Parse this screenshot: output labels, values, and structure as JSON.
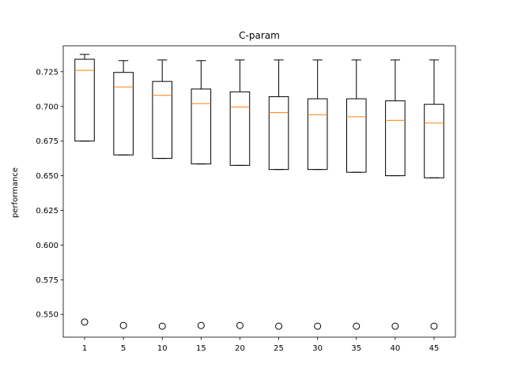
{
  "chart_data": {
    "type": "boxplot",
    "title": "C-param",
    "xlabel": "",
    "ylabel": "performance",
    "categories": [
      "1",
      "5",
      "10",
      "15",
      "20",
      "25",
      "30",
      "35",
      "40",
      "45"
    ],
    "ylim": [
      0.5336,
      0.7437
    ],
    "yticks": [
      0.55,
      0.575,
      0.6,
      0.625,
      0.65,
      0.675,
      0.7,
      0.725
    ],
    "ytick_labels": [
      "0.550",
      "0.575",
      "0.600",
      "0.625",
      "0.650",
      "0.675",
      "0.700",
      "0.725"
    ],
    "grid": false,
    "boxes": [
      {
        "whisker_low": 0.675,
        "q1": 0.675,
        "median": 0.726,
        "q3": 0.734,
        "whisker_high": 0.7375,
        "outliers": [
          0.5445
        ]
      },
      {
        "whisker_low": 0.665,
        "q1": 0.665,
        "median": 0.714,
        "q3": 0.7245,
        "whisker_high": 0.733,
        "outliers": [
          0.542
        ]
      },
      {
        "whisker_low": 0.6625,
        "q1": 0.6625,
        "median": 0.708,
        "q3": 0.718,
        "whisker_high": 0.7335,
        "outliers": [
          0.5415
        ]
      },
      {
        "whisker_low": 0.6585,
        "q1": 0.6585,
        "median": 0.702,
        "q3": 0.7125,
        "whisker_high": 0.733,
        "outliers": [
          0.542
        ]
      },
      {
        "whisker_low": 0.6575,
        "q1": 0.6575,
        "median": 0.6995,
        "q3": 0.7105,
        "whisker_high": 0.7335,
        "outliers": [
          0.542
        ]
      },
      {
        "whisker_low": 0.6545,
        "q1": 0.6545,
        "median": 0.6955,
        "q3": 0.707,
        "whisker_high": 0.7335,
        "outliers": [
          0.5415
        ]
      },
      {
        "whisker_low": 0.6545,
        "q1": 0.6545,
        "median": 0.694,
        "q3": 0.7055,
        "whisker_high": 0.7335,
        "outliers": [
          0.5415
        ]
      },
      {
        "whisker_low": 0.6525,
        "q1": 0.6525,
        "median": 0.6925,
        "q3": 0.7055,
        "whisker_high": 0.7335,
        "outliers": [
          0.5415
        ]
      },
      {
        "whisker_low": 0.65,
        "q1": 0.65,
        "median": 0.69,
        "q3": 0.704,
        "whisker_high": 0.7335,
        "outliers": [
          0.5415
        ]
      },
      {
        "whisker_low": 0.6485,
        "q1": 0.6485,
        "median": 0.688,
        "q3": 0.7015,
        "whisker_high": 0.7335,
        "outliers": [
          0.5415
        ]
      }
    ],
    "colors": {
      "box": "#000000",
      "median": "#ff7f0e",
      "outlier": "#000000",
      "background": "#ffffff"
    }
  }
}
